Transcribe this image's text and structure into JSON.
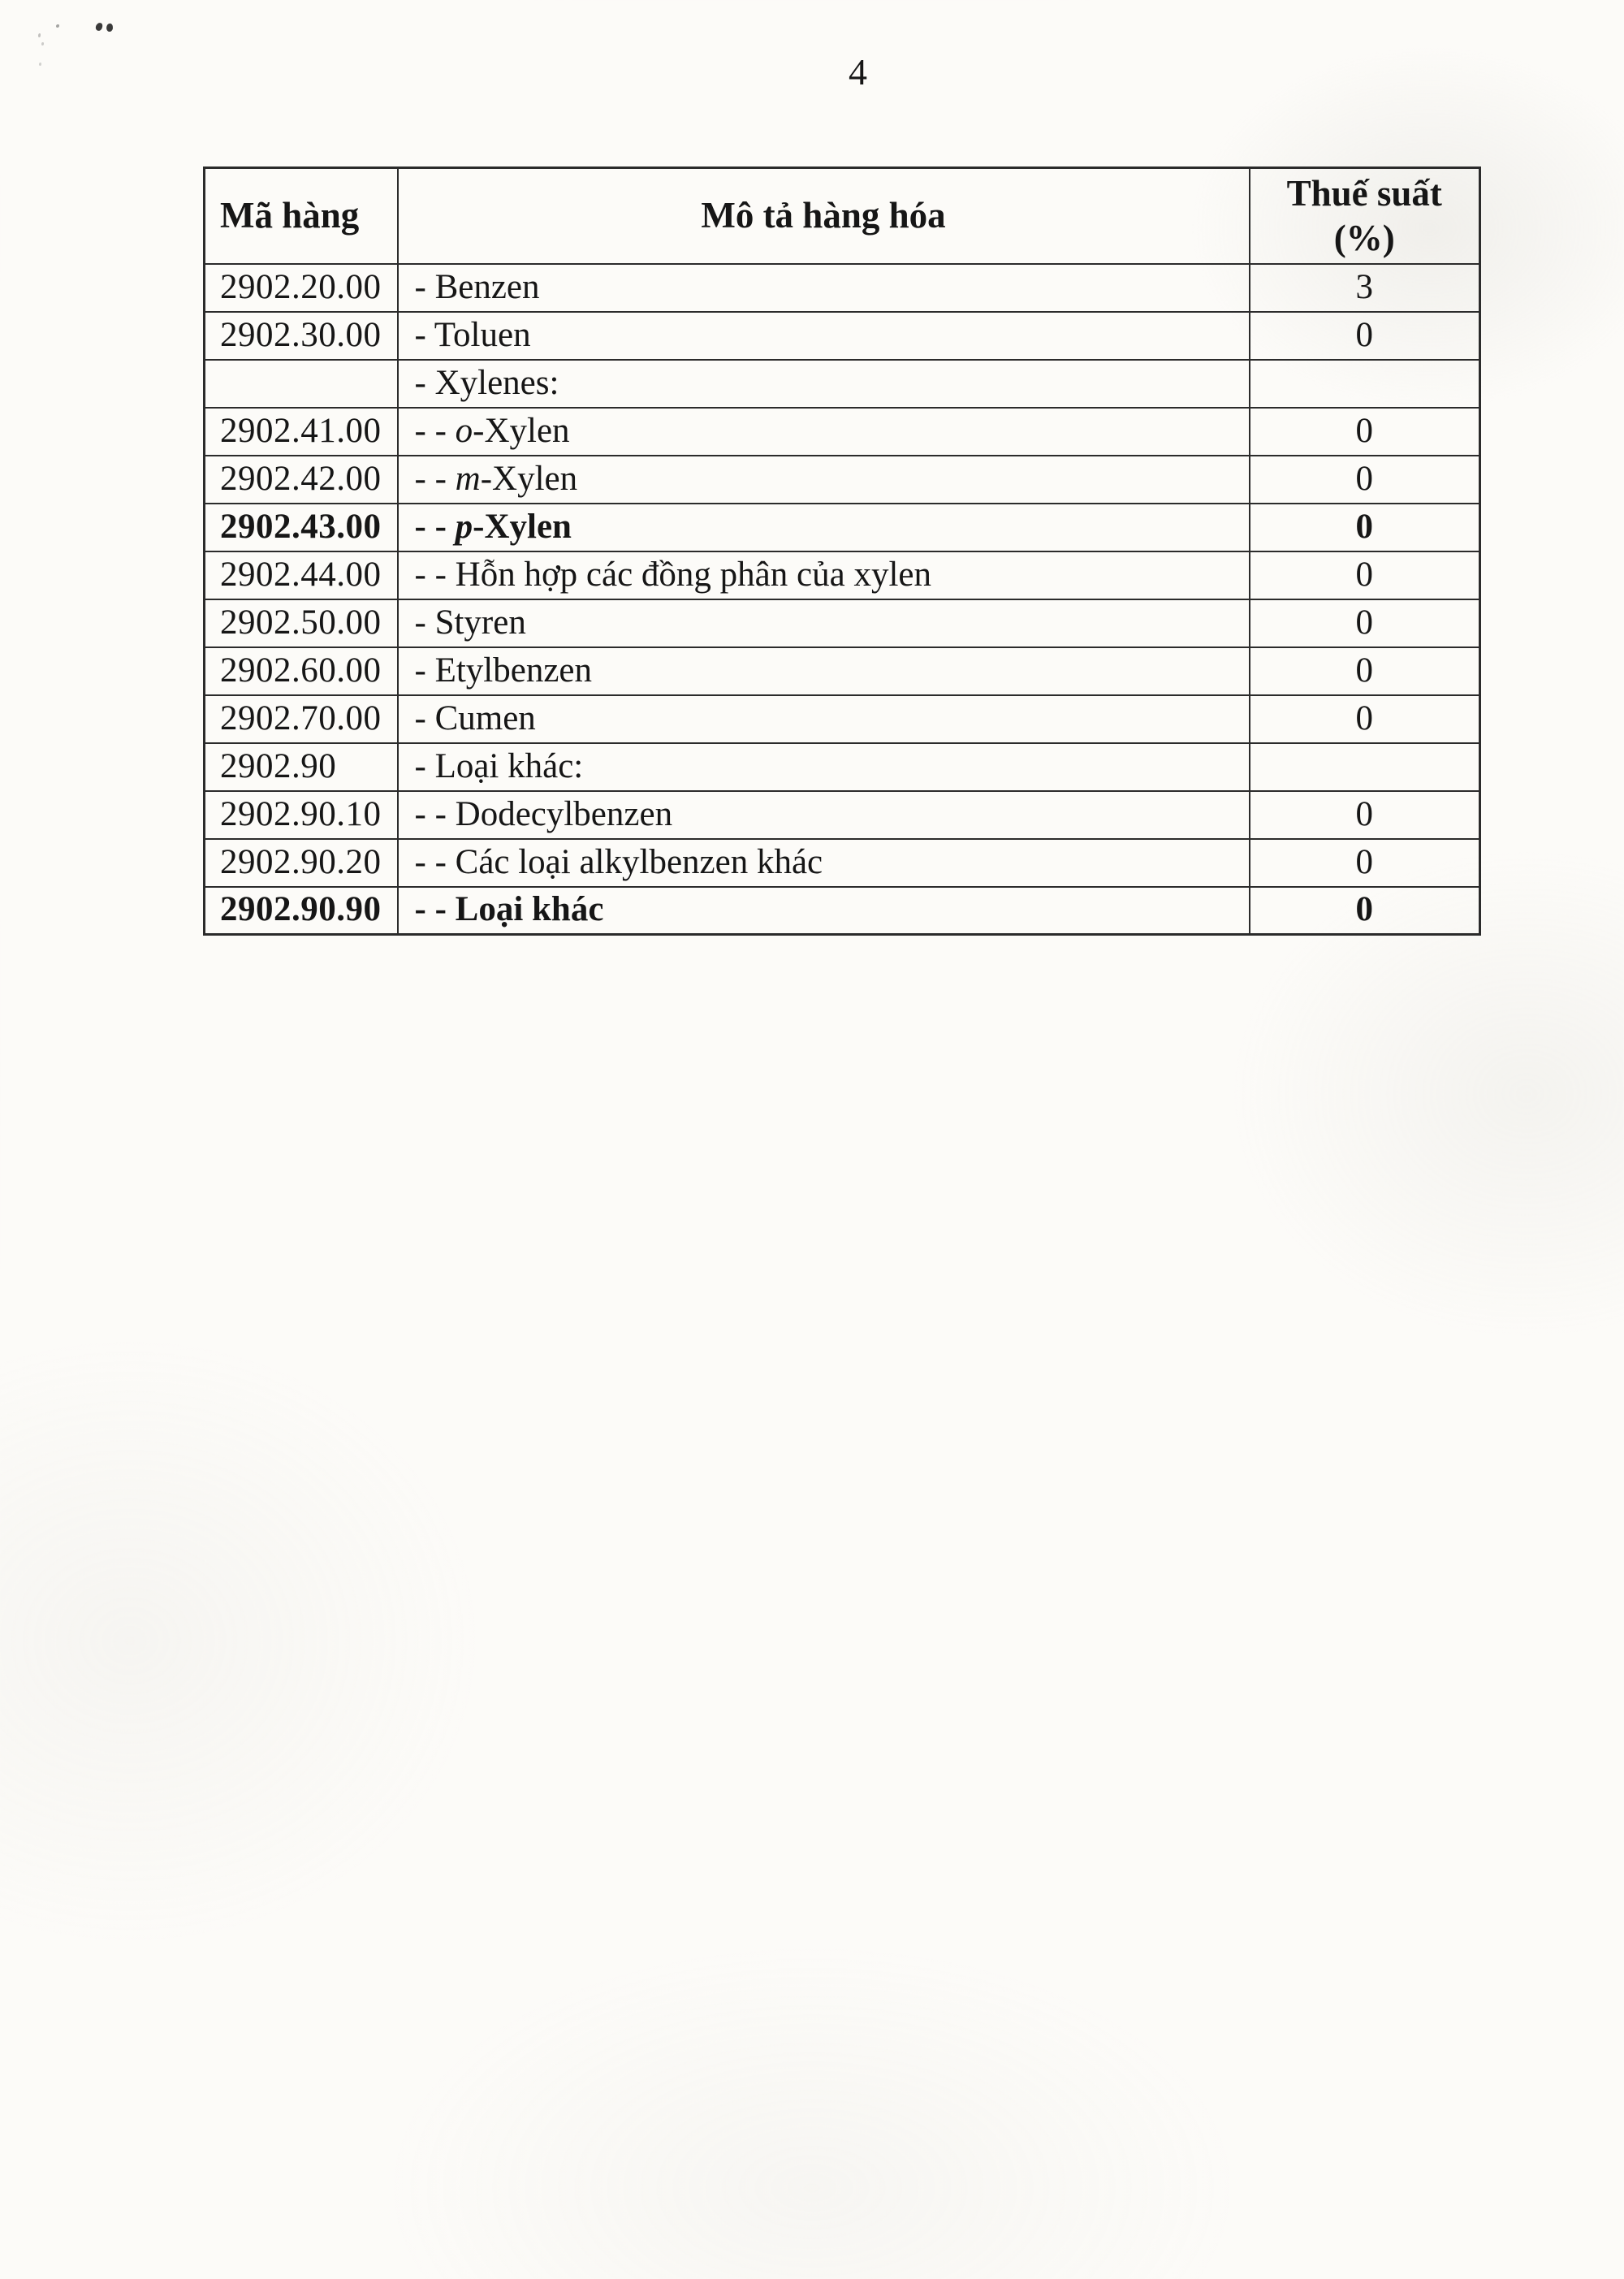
{
  "page": {
    "number": "4"
  },
  "table": {
    "headers": {
      "code": "Mã hàng",
      "description": "Mô tả hàng hóa",
      "rate_line1": "Thuế suất",
      "rate_line2": "(%)"
    },
    "rows": [
      {
        "code": "2902.20.00",
        "desc": [
          {
            "t": "- Benzen"
          }
        ],
        "rate": "3",
        "bold": false
      },
      {
        "code": "2902.30.00",
        "desc": [
          {
            "t": "- Toluen"
          }
        ],
        "rate": "0",
        "bold": false
      },
      {
        "code": "",
        "desc": [
          {
            "t": "- Xylenes:"
          }
        ],
        "rate": "",
        "bold": false
      },
      {
        "code": "2902.41.00",
        "desc": [
          {
            "t": "- - "
          },
          {
            "t": "o",
            "i": true
          },
          {
            "t": "-Xylen"
          }
        ],
        "rate": "0",
        "bold": false
      },
      {
        "code": "2902.42.00",
        "desc": [
          {
            "t": "- - "
          },
          {
            "t": "m",
            "i": true
          },
          {
            "t": "-Xylen"
          }
        ],
        "rate": "0",
        "bold": false
      },
      {
        "code": "2902.43.00",
        "desc": [
          {
            "t": "- - "
          },
          {
            "t": "p",
            "i": true
          },
          {
            "t": "-Xylen"
          }
        ],
        "rate": "0",
        "bold": true
      },
      {
        "code": "2902.44.00",
        "desc": [
          {
            "t": "- - Hỗn hợp các đồng phân của xylen"
          }
        ],
        "rate": "0",
        "bold": false
      },
      {
        "code": "2902.50.00",
        "desc": [
          {
            "t": "- Styren"
          }
        ],
        "rate": "0",
        "bold": false
      },
      {
        "code": "2902.60.00",
        "desc": [
          {
            "t": "- Etylbenzen"
          }
        ],
        "rate": "0",
        "bold": false
      },
      {
        "code": "2902.70.00",
        "desc": [
          {
            "t": "- Cumen"
          }
        ],
        "rate": "0",
        "bold": false
      },
      {
        "code": "2902.90",
        "desc": [
          {
            "t": "- Loại khác:"
          }
        ],
        "rate": "",
        "bold": false
      },
      {
        "code": "2902.90.10",
        "desc": [
          {
            "t": "- - Dodecylbenzen"
          }
        ],
        "rate": "0",
        "bold": false
      },
      {
        "code": "2902.90.20",
        "desc": [
          {
            "t": "- - Các loại alkylbenzen khác"
          }
        ],
        "rate": "0",
        "bold": false
      },
      {
        "code": "2902.90.90",
        "desc": [
          {
            "t": "- - Loại khác"
          }
        ],
        "rate": "0",
        "bold": true
      }
    ]
  },
  "colors": {
    "text": "#161616",
    "border": "#2b2b2b",
    "paper": "#fcfbf8"
  }
}
